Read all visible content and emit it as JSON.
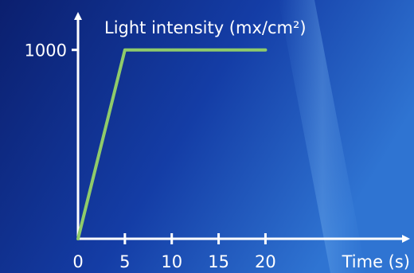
{
  "chart_data": {
    "type": "line",
    "ylabel": "Light intensity (mx/cm²)",
    "xlabel": "Time (s)",
    "x_ticks": [
      "0",
      "5",
      "10",
      "15",
      "20"
    ],
    "y_ticks": [
      "1000"
    ],
    "xlim": [
      0,
      35
    ],
    "ylim": [
      0,
      1180
    ],
    "grid": false,
    "series": [
      {
        "x": [
          0,
          5,
          20
        ],
        "y": [
          0,
          1000,
          1000
        ]
      }
    ]
  },
  "colors": {
    "background_dark": "#0b1f6e",
    "background_mid": "#143da6",
    "background_light": "#2f74d2",
    "axis": "#ffffff",
    "series_line": "#8fcb6a"
  }
}
